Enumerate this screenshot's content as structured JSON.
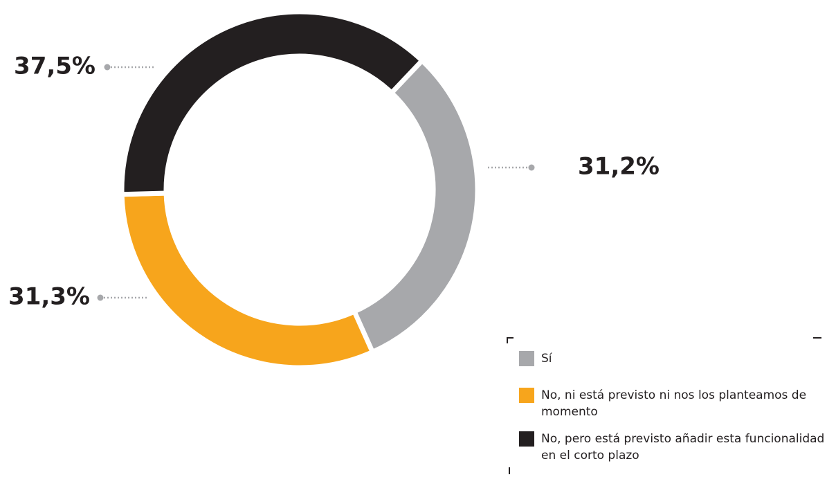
{
  "chart_data": {
    "type": "donut",
    "categories": [
      "Sí",
      "No, ni está previsto ni nos los planteamos de momento",
      "No, pero está previsto añadir esta funcionalidad en el corto plazo"
    ],
    "values": [
      31.2,
      31.3,
      37.5
    ],
    "value_labels": [
      "31,2%",
      "31,3%",
      "37,5%"
    ],
    "colors": [
      "#a7a8ab",
      "#f7a51c",
      "#231f20"
    ],
    "legend": "bottom-right"
  }
}
